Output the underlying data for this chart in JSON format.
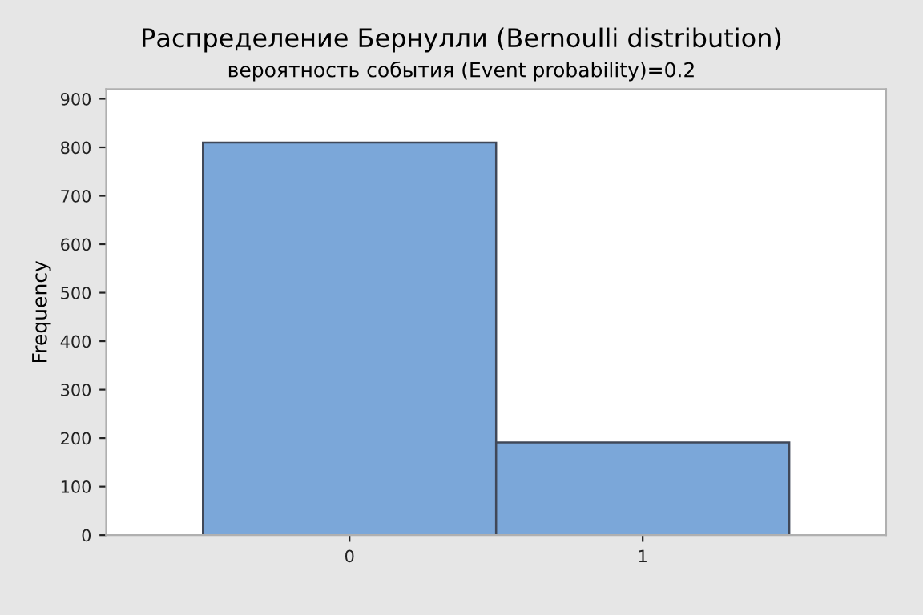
{
  "chart_data": {
    "type": "bar",
    "title": "Распределение Бернулли (Bernoulli distribution)",
    "subtitle": "вероятность события (Event probability)=0.2",
    "ylabel": "Frequency",
    "categories": [
      "0",
      "1"
    ],
    "values": [
      810,
      191
    ],
    "color": "#7ba7d9",
    "ylim": [
      0,
      920
    ],
    "yticks": [
      0,
      100,
      200,
      300,
      400,
      500,
      600,
      700,
      800,
      900
    ],
    "grid": false,
    "legend": false
  }
}
